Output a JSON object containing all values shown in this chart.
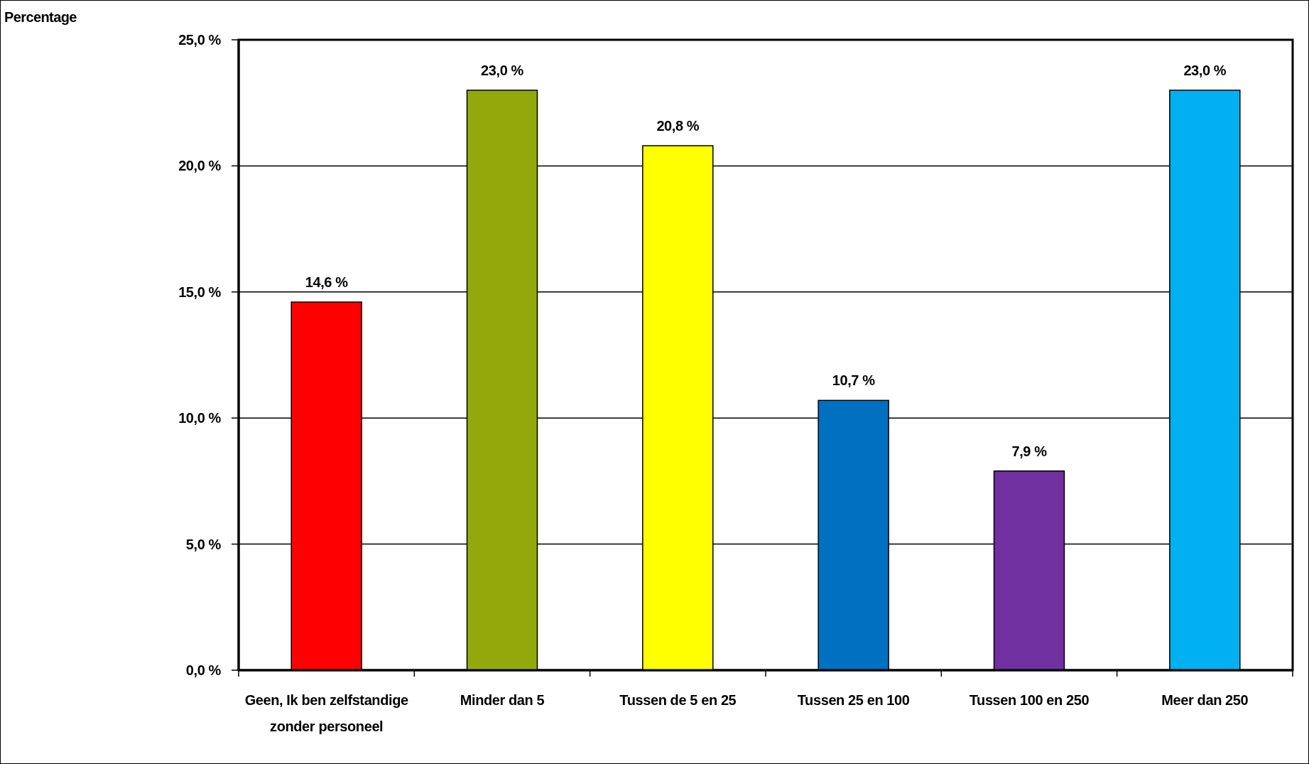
{
  "chart_data": {
    "type": "bar",
    "annotations": [
      "Percentage"
    ],
    "categories": [
      "Geen, Ik ben zelfstandige zonder personeel",
      "Minder dan 5",
      "Tussen de 5 en 25",
      "Tussen 25 en 100",
      "Tussen 100 en 250",
      "Meer dan 250"
    ],
    "values": [
      14.6,
      23.0,
      20.8,
      10.7,
      7.9,
      23.0
    ],
    "colors": [
      "#ff0000",
      "#93a90b",
      "#ffff00",
      "#0070c0",
      "#7030a0",
      "#00b0f0"
    ],
    "value_labels": [
      "14,6 %",
      "23,0 %",
      "20,8 %",
      "10,7 %",
      "7,9 %",
      "23,0 %"
    ],
    "ylim": [
      0,
      25
    ],
    "yticks": [
      {
        "value": 0,
        "label": "0,0 %"
      },
      {
        "value": 5,
        "label": "5,0 %"
      },
      {
        "value": 10,
        "label": "10,0 %"
      },
      {
        "value": 15,
        "label": "15,0 %"
      },
      {
        "value": 20,
        "label": "20,0 %"
      },
      {
        "value": 25,
        "label": "25,0 %"
      }
    ],
    "grid": "y"
  }
}
